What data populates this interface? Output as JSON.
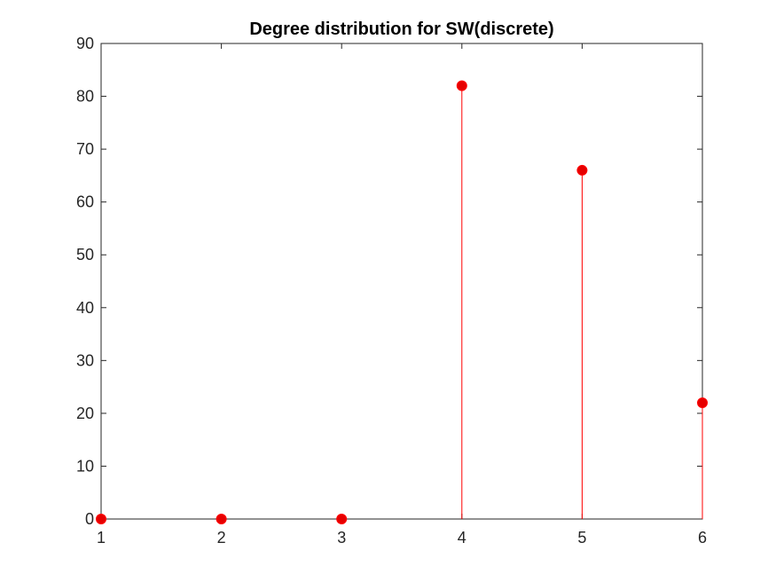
{
  "chart_data": {
    "type": "stem",
    "title": "Degree distribution for SW(discrete)",
    "xlabel": "",
    "ylabel": "",
    "x": [
      1,
      2,
      3,
      4,
      5,
      6
    ],
    "values": [
      0,
      0,
      0,
      82,
      66,
      22
    ],
    "xlim": [
      1,
      6
    ],
    "ylim": [
      0,
      90
    ],
    "xticks": [
      1,
      2,
      3,
      4,
      5,
      6
    ],
    "yticks": [
      0,
      10,
      20,
      30,
      40,
      50,
      60,
      70,
      80,
      90
    ],
    "grid": false,
    "legend": "none",
    "colors": {
      "series": "#ff0000",
      "marker": "#e60000",
      "axis": "#262626"
    }
  }
}
